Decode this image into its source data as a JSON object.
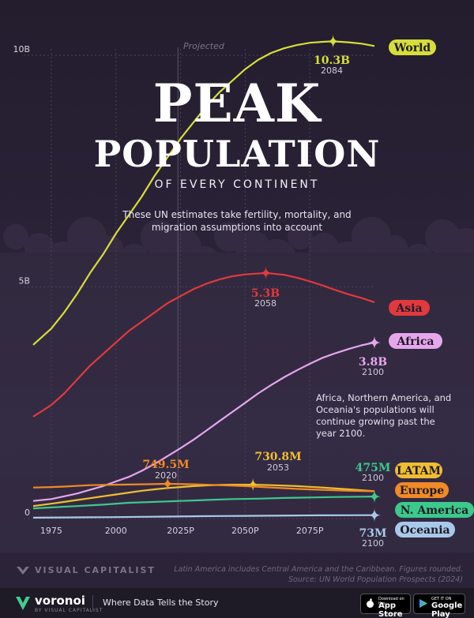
{
  "header": {
    "title_line1": "PEAK",
    "title_line2": "POPULATION",
    "title_line3": "OF EVERY CONTINENT",
    "subtitle": "These UN estimates take fertility, mortality, and migration assumptions into account"
  },
  "note": "Africa, Northern America, and Oceania's populations will continue growing past the year 2100.",
  "projected_label": "Projected",
  "footnote_line1": "Latin America includes Central America and the Caribbean. Figures rounded.",
  "footnote_line2": "Source: UN World Population Prospects (2024)",
  "brand": "VISUAL CAPITALIST",
  "footer": {
    "voronoi": "voronoi",
    "voronoi_sub": "BY VISUAL CAPITALIST",
    "tagline": "Where Data Tells the Story",
    "appstore_small": "Download on the",
    "appstore_large": "App Store",
    "gplay_small": "GET IT ON",
    "gplay_large": "Google Play"
  },
  "chart_data": {
    "type": "line",
    "x_ticks": [
      {
        "year": 1975,
        "label": "1975"
      },
      {
        "year": 2000,
        "label": "2000"
      },
      {
        "year": 2025,
        "label": "2025P"
      },
      {
        "year": 2050,
        "label": "2050P"
      },
      {
        "year": 2075,
        "label": "2075P"
      }
    ],
    "y_ticks": [
      {
        "value": 0,
        "label": "0"
      },
      {
        "value": 5,
        "label": "5B"
      },
      {
        "value": 10,
        "label": "10B"
      }
    ],
    "xlim": [
      1968,
      2100
    ],
    "ylim": [
      0,
      10
    ],
    "y_unit": "billions",
    "projected_from": 2024,
    "series": [
      {
        "name": "World",
        "color": "#d6de3a",
        "points": [
          [
            1968,
            3.75
          ],
          [
            1975,
            4.1
          ],
          [
            1980,
            4.45
          ],
          [
            1985,
            4.85
          ],
          [
            1990,
            5.3
          ],
          [
            1995,
            5.7
          ],
          [
            2000,
            6.15
          ],
          [
            2005,
            6.55
          ],
          [
            2010,
            6.95
          ],
          [
            2015,
            7.4
          ],
          [
            2020,
            7.8
          ],
          [
            2025,
            8.2
          ],
          [
            2030,
            8.55
          ],
          [
            2035,
            8.9
          ],
          [
            2040,
            9.2
          ],
          [
            2045,
            9.45
          ],
          [
            2050,
            9.7
          ],
          [
            2055,
            9.9
          ],
          [
            2060,
            10.05
          ],
          [
            2065,
            10.15
          ],
          [
            2070,
            10.22
          ],
          [
            2075,
            10.27
          ],
          [
            2080,
            10.29
          ],
          [
            2084,
            10.3
          ],
          [
            2090,
            10.28
          ],
          [
            2095,
            10.25
          ],
          [
            2100,
            10.2
          ]
        ],
        "peak": {
          "year": 2084,
          "value": 10.3,
          "value_label": "10.3B",
          "year_label": "2084"
        }
      },
      {
        "name": "Asia",
        "color": "#e0393e",
        "points": [
          [
            1968,
            2.2
          ],
          [
            1975,
            2.45
          ],
          [
            1980,
            2.7
          ],
          [
            1985,
            3.0
          ],
          [
            1990,
            3.3
          ],
          [
            1995,
            3.55
          ],
          [
            2000,
            3.8
          ],
          [
            2005,
            4.05
          ],
          [
            2010,
            4.25
          ],
          [
            2015,
            4.45
          ],
          [
            2020,
            4.65
          ],
          [
            2025,
            4.8
          ],
          [
            2030,
            4.95
          ],
          [
            2035,
            5.07
          ],
          [
            2040,
            5.16
          ],
          [
            2045,
            5.23
          ],
          [
            2050,
            5.27
          ],
          [
            2058,
            5.3
          ],
          [
            2065,
            5.26
          ],
          [
            2070,
            5.2
          ],
          [
            2075,
            5.12
          ],
          [
            2080,
            5.03
          ],
          [
            2085,
            4.93
          ],
          [
            2090,
            4.84
          ],
          [
            2095,
            4.76
          ],
          [
            2100,
            4.67
          ]
        ],
        "peak": {
          "year": 2058,
          "value": 5.3,
          "value_label": "5.3B",
          "year_label": "2058"
        }
      },
      {
        "name": "Africa",
        "color": "#e6a6ec",
        "points": [
          [
            1968,
            0.38
          ],
          [
            1975,
            0.42
          ],
          [
            1980,
            0.48
          ],
          [
            1985,
            0.54
          ],
          [
            1990,
            0.62
          ],
          [
            1995,
            0.7
          ],
          [
            2000,
            0.8
          ],
          [
            2005,
            0.9
          ],
          [
            2010,
            1.03
          ],
          [
            2015,
            1.18
          ],
          [
            2020,
            1.35
          ],
          [
            2025,
            1.52
          ],
          [
            2030,
            1.7
          ],
          [
            2035,
            1.9
          ],
          [
            2040,
            2.1
          ],
          [
            2045,
            2.3
          ],
          [
            2050,
            2.5
          ],
          [
            2055,
            2.7
          ],
          [
            2060,
            2.88
          ],
          [
            2065,
            3.05
          ],
          [
            2070,
            3.2
          ],
          [
            2075,
            3.34
          ],
          [
            2080,
            3.47
          ],
          [
            2085,
            3.57
          ],
          [
            2090,
            3.66
          ],
          [
            2095,
            3.74
          ],
          [
            2100,
            3.8
          ]
        ],
        "peak": {
          "year": 2100,
          "value": 3.8,
          "value_label": "3.8B",
          "year_label": "2100"
        }
      },
      {
        "name": "LATAM",
        "color": "#f0be32",
        "points": [
          [
            1968,
            0.27
          ],
          [
            1975,
            0.32
          ],
          [
            1980,
            0.36
          ],
          [
            1985,
            0.4
          ],
          [
            1990,
            0.44
          ],
          [
            1995,
            0.48
          ],
          [
            2000,
            0.52
          ],
          [
            2005,
            0.56
          ],
          [
            2010,
            0.6
          ],
          [
            2015,
            0.63
          ],
          [
            2020,
            0.66
          ],
          [
            2025,
            0.68
          ],
          [
            2030,
            0.7
          ],
          [
            2035,
            0.715
          ],
          [
            2040,
            0.725
          ],
          [
            2045,
            0.73
          ],
          [
            2053,
            0.731
          ],
          [
            2060,
            0.72
          ],
          [
            2070,
            0.7
          ],
          [
            2080,
            0.67
          ],
          [
            2090,
            0.63
          ],
          [
            2100,
            0.59
          ]
        ],
        "peak": {
          "year": 2053,
          "value": 0.7308,
          "value_label": "730.8M",
          "year_label": "2053"
        }
      },
      {
        "name": "Europe",
        "color": "#f08a24",
        "points": [
          [
            1968,
            0.67
          ],
          [
            1975,
            0.68
          ],
          [
            1980,
            0.69
          ],
          [
            1990,
            0.72
          ],
          [
            2000,
            0.73
          ],
          [
            2010,
            0.74
          ],
          [
            2020,
            0.7495
          ],
          [
            2030,
            0.74
          ],
          [
            2040,
            0.72
          ],
          [
            2050,
            0.7
          ],
          [
            2060,
            0.67
          ],
          [
            2070,
            0.64
          ],
          [
            2080,
            0.62
          ],
          [
            2090,
            0.6
          ],
          [
            2100,
            0.59
          ]
        ],
        "peak": {
          "year": 2020,
          "value": 0.7495,
          "value_label": "749.5M",
          "year_label": "2020"
        }
      },
      {
        "name": "N. America",
        "color": "#3cc98c",
        "points": [
          [
            1968,
            0.22
          ],
          [
            1975,
            0.24
          ],
          [
            1985,
            0.27
          ],
          [
            1995,
            0.3
          ],
          [
            2005,
            0.34
          ],
          [
            2015,
            0.36
          ],
          [
            2025,
            0.38
          ],
          [
            2035,
            0.4
          ],
          [
            2045,
            0.42
          ],
          [
            2055,
            0.43
          ],
          [
            2065,
            0.445
          ],
          [
            2075,
            0.455
          ],
          [
            2085,
            0.465
          ],
          [
            2095,
            0.472
          ],
          [
            2100,
            0.475
          ]
        ],
        "peak": {
          "year": 2100,
          "value": 0.475,
          "value_label": "475M",
          "year_label": "2100"
        }
      },
      {
        "name": "Oceania",
        "color": "#a9c9ea",
        "points": [
          [
            1968,
            0.018
          ],
          [
            1980,
            0.023
          ],
          [
            1990,
            0.027
          ],
          [
            2000,
            0.031
          ],
          [
            2010,
            0.037
          ],
          [
            2020,
            0.043
          ],
          [
            2030,
            0.049
          ],
          [
            2040,
            0.054
          ],
          [
            2050,
            0.058
          ],
          [
            2060,
            0.062
          ],
          [
            2070,
            0.066
          ],
          [
            2080,
            0.069
          ],
          [
            2090,
            0.071
          ],
          [
            2100,
            0.073
          ]
        ],
        "peak": {
          "year": 2100,
          "value": 0.073,
          "value_label": "73M",
          "year_label": "2100"
        }
      }
    ]
  }
}
